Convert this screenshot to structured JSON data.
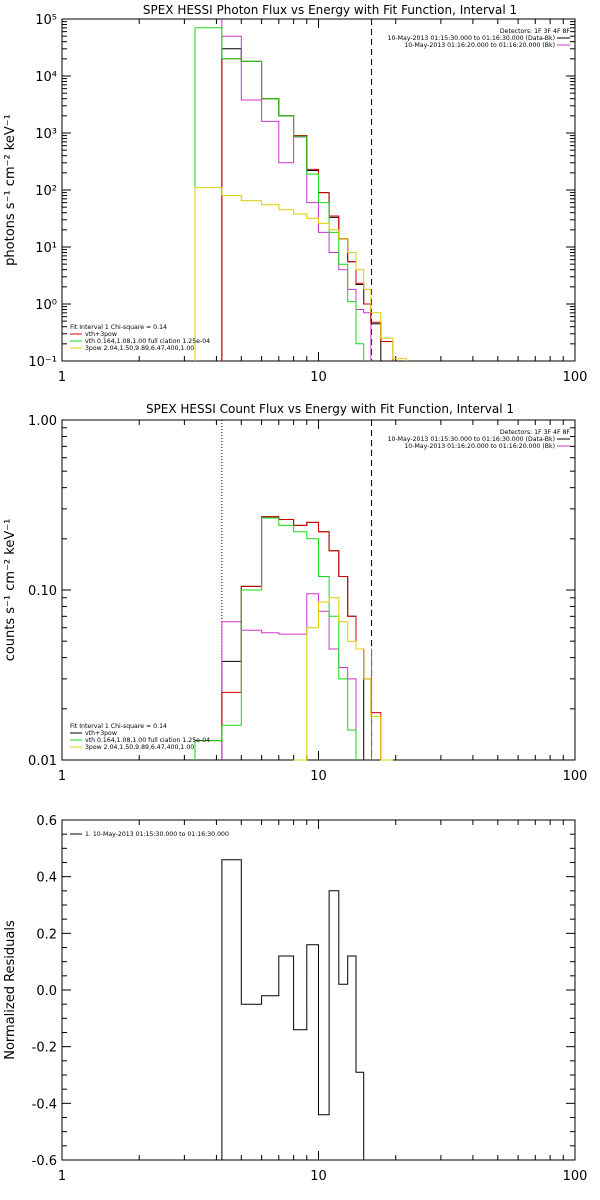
{
  "colors": {
    "black": "#000000",
    "red": "#d40000",
    "green": "#11dd11",
    "yellow": "#dccc00",
    "magenta": "#cc33cc"
  },
  "chart_data": [
    {
      "id": "photon",
      "type": "line",
      "title": "SPEX HESSI Photon Flux vs Energy with Fit Function, Interval 1",
      "xlabel": "",
      "ylabel": "photons s⁻¹ cm⁻² keV⁻¹",
      "xscale": "log",
      "yscale": "log",
      "xlim": [
        1,
        100
      ],
      "ylim": [
        0.1,
        100000
      ],
      "xticks": [
        1,
        10,
        100
      ],
      "xticklabels": [
        "1",
        "10",
        "100"
      ],
      "yticks": [
        0.1,
        1,
        10,
        100,
        1000,
        10000,
        100000
      ],
      "yticklabels": [
        "10⁻¹",
        "10⁰",
        "10¹",
        "10²",
        "10³",
        "10⁴",
        "10⁵"
      ],
      "vlines": [
        {
          "x": 4.2,
          "style": "solid",
          "color": "magenta"
        },
        {
          "x": 16.1,
          "style": "dashed",
          "color": "black"
        }
      ],
      "legend_top": {
        "position": "top-right",
        "header": "Detectors: 1F 3F 4F 8F",
        "entries": [
          {
            "label": "10-May-2013 01:15:30.000 to 01:16:30.000 (Data-Bk)",
            "color": "black"
          },
          {
            "label": "10-May-2013 01:16:20.000 to 01:16:20.000 (Bk)",
            "color": "magenta"
          }
        ]
      },
      "legend_bottom": {
        "position": "bottom-left",
        "header": "Fit Interval 1    Chi-square = 0.14",
        "entries": [
          {
            "label": "vth+3pow",
            "color": "red"
          },
          {
            "label": "vth 0.164,1.08,1.00   full ciation 1.25e-04",
            "color": "green"
          },
          {
            "label": "3pow 2.04,1.50,9.89,6.47,400,1.00",
            "color": "yellow"
          }
        ]
      },
      "edges": [
        3.3,
        4.2,
        5.0,
        6.0,
        7.0,
        8.0,
        9.0,
        10.0,
        11.0,
        12.0,
        13.0,
        14.0,
        15.0,
        16.0,
        17.5,
        19.5,
        22.0
      ],
      "series": [
        {
          "name": "Data-Bk",
          "color": "black",
          "values": [
            null,
            30000,
            18000,
            4000,
            2000,
            900,
            220,
            90,
            33,
            14,
            5.5,
            2.2,
            1.0,
            0.45,
            null,
            null
          ]
        },
        {
          "name": "Bk",
          "color": "magenta",
          "values": [
            null,
            50000,
            3800,
            1600,
            300,
            850,
            60,
            18,
            8,
            4,
            1.8,
            0.8,
            0.7,
            null,
            null,
            null
          ]
        },
        {
          "name": "vth+3pow",
          "color": "red",
          "values": [
            null,
            20000,
            18000,
            4000,
            2000,
            900,
            230,
            90,
            35,
            14,
            5.5,
            2.3,
            1.0,
            0.48,
            0.22,
            null
          ]
        },
        {
          "name": "vth",
          "color": "green",
          "values": [
            70000,
            20000,
            18000,
            4000,
            2000,
            880,
            190,
            60,
            18,
            5,
            1.1,
            0.2,
            null,
            null,
            null,
            null
          ]
        },
        {
          "name": "3pow",
          "color": "yellow",
          "values": [
            110,
            80,
            65,
            55,
            45,
            38,
            32,
            26,
            20,
            14,
            8,
            4,
            1.8,
            0.7,
            0.25,
            0.11
          ]
        }
      ]
    },
    {
      "id": "count",
      "type": "line",
      "title": "SPEX HESSI Count Flux vs Energy with Fit Function, Interval 1",
      "xlabel": "",
      "ylabel": "counts s⁻¹ cm⁻² keV⁻¹",
      "xscale": "log",
      "yscale": "log",
      "xlim": [
        1,
        100
      ],
      "ylim": [
        0.01,
        1.0
      ],
      "xticks": [
        1,
        10,
        100
      ],
      "xticklabels": [
        "1",
        "10",
        "100"
      ],
      "yticks": [
        0.01,
        0.1,
        1.0
      ],
      "yticklabels": [
        "0.01",
        "0.10",
        "1.00"
      ],
      "vlines": [
        {
          "x": 4.2,
          "style": "dotted",
          "color": "black"
        },
        {
          "x": 16.1,
          "style": "dashed",
          "color": "black"
        },
        {
          "x": 16.1,
          "style": "solid",
          "color": "magenta",
          "ymax": 0.045
        }
      ],
      "legend_top": {
        "position": "top-right",
        "header": "Detectors: 1F 3F 4F 8F",
        "entries": [
          {
            "label": "10-May-2013 01:15:30.000 to 01:16:30.000 (Data-Bk)",
            "color": "black"
          },
          {
            "label": "10-May-2013 01:16:20.000 to 01:16:20.000 (Bk)",
            "color": "magenta"
          }
        ]
      },
      "legend_bottom": {
        "position": "bottom-left",
        "header": "Fit Interval 1    Chi-square = 0.14",
        "entries": [
          {
            "label": "vth+3pow",
            "color": "black"
          },
          {
            "label": "vth 0.164,1.08,1.00   full ciation 1.25e-04",
            "color": "green"
          },
          {
            "label": "3pow 2.04,1.50,9.89,6.47,400,1.00",
            "color": "yellow"
          }
        ]
      },
      "edges": [
        3.3,
        4.2,
        5.0,
        6.0,
        7.0,
        8.0,
        9.0,
        10.0,
        11.0,
        12.0,
        13.0,
        14.0,
        15.0,
        16.0,
        17.5,
        19.5,
        22.0
      ],
      "series": [
        {
          "name": "Data-Bk",
          "color": "black",
          "values": [
            null,
            0.038,
            0.105,
            0.27,
            0.26,
            0.24,
            0.25,
            0.22,
            0.17,
            0.12,
            0.07,
            0.045,
            null,
            null,
            null,
            null
          ]
        },
        {
          "name": "Bk",
          "color": "magenta",
          "values": [
            null,
            0.065,
            0.058,
            0.056,
            0.055,
            0.055,
            0.095,
            0.075,
            0.045,
            0.035,
            0.03,
            null,
            null,
            null,
            null,
            null
          ]
        },
        {
          "name": "vth+3pow",
          "color": "red",
          "values": [
            0.013,
            0.025,
            0.105,
            0.27,
            0.26,
            0.24,
            0.25,
            0.22,
            0.17,
            0.12,
            0.07,
            0.045,
            0.03,
            0.019,
            0.01,
            null
          ]
        },
        {
          "name": "vth",
          "color": "green",
          "values": [
            0.013,
            0.016,
            0.1,
            0.265,
            0.24,
            0.22,
            0.2,
            0.12,
            0.07,
            0.03,
            0.015,
            null,
            null,
            null,
            null,
            null
          ]
        },
        {
          "name": "3pow",
          "color": "yellow",
          "values": [
            null,
            null,
            null,
            null,
            null,
            0.01,
            0.06,
            0.085,
            0.09,
            0.065,
            0.05,
            0.045,
            0.03,
            0.018,
            0.01,
            null
          ]
        }
      ]
    },
    {
      "id": "resid",
      "type": "line",
      "title": "",
      "xlabel": "",
      "ylabel": "Normalized Residuals",
      "xscale": "log",
      "yscale": "linear",
      "xlim": [
        1,
        100
      ],
      "ylim": [
        -0.6,
        0.6
      ],
      "xticks": [
        1,
        10,
        100
      ],
      "xticklabels": [
        "1",
        "10",
        "100"
      ],
      "yticks": [
        -0.6,
        -0.4,
        -0.2,
        0.0,
        0.2,
        0.4,
        0.6
      ],
      "yticklabels": [
        "-0.6",
        "-0.4",
        "-0.2",
        "0.0",
        "0.2",
        "0.4",
        "0.6"
      ],
      "legend_top": {
        "position": "top-left",
        "header": "",
        "entries": [
          {
            "label": "1. 10-May-2013 01:15:30.000 to 01:16:30.000",
            "color": "black"
          }
        ]
      },
      "edges": [
        4.2,
        5.0,
        6.0,
        7.0,
        8.0,
        9.0,
        10.0,
        11.0,
        12.0,
        13.0,
        14.0,
        15.0,
        16.0
      ],
      "series": [
        {
          "name": "1. 10-May-2013 01:15:30.000 to 01:16:30.000",
          "color": "black",
          "values": [
            0.46,
            -0.05,
            -0.02,
            0.12,
            -0.14,
            0.16,
            -0.44,
            0.35,
            0.02,
            0.12,
            -0.29,
            null
          ]
        }
      ]
    }
  ]
}
